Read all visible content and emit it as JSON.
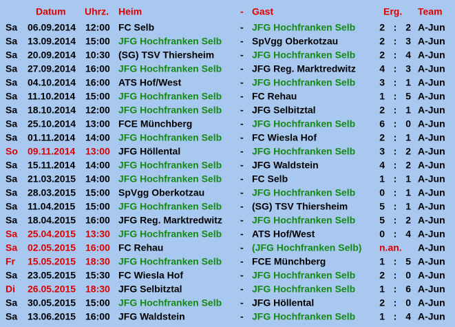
{
  "header": {
    "date": "Datum",
    "time": "Uhrz.",
    "home": "Heim",
    "dash": "-",
    "guest": "Gast",
    "result": "Erg.",
    "team": "Team"
  },
  "score_separator": ":",
  "highlight_club": "JFG Hochfranken Selb",
  "rows": [
    {
      "day": "Sa",
      "date": "06.09.2014",
      "time": "12:00",
      "home": "FC Selb",
      "guest": "JFG Hochfranken Selb",
      "goals_home": 2,
      "goals_guest": 2,
      "team": "A-Jun"
    },
    {
      "day": "Sa",
      "date": "13.09.2014",
      "time": "15:00",
      "home": "JFG Hochfranken Selb",
      "guest": "SpVgg Oberkotzau",
      "goals_home": 2,
      "goals_guest": 3,
      "team": "A-Jun"
    },
    {
      "day": "Sa",
      "date": "20.09.2014",
      "time": "10:30",
      "home": "(SG) TSV Thiersheim",
      "guest": "JFG Hochfranken Selb",
      "goals_home": 2,
      "goals_guest": 4,
      "team": "A-Jun"
    },
    {
      "day": "Sa",
      "date": "27.09.2014",
      "time": "16:00",
      "home": "JFG Hochfranken Selb",
      "guest": "JFG Reg. Marktredwitz",
      "goals_home": 4,
      "goals_guest": 3,
      "team": "A-Jun"
    },
    {
      "day": "Sa",
      "date": "04.10.2014",
      "time": "16:00",
      "home": "ATS Hof/West",
      "guest": "JFG Hochfranken Selb",
      "goals_home": 3,
      "goals_guest": 1,
      "team": "A-Jun"
    },
    {
      "day": "Sa",
      "date": "11.10.2014",
      "time": "15:00",
      "home": "JFG Hochfranken Selb",
      "guest": "FC Rehau",
      "goals_home": 1,
      "goals_guest": 5,
      "team": "A-Jun"
    },
    {
      "day": "Sa",
      "date": "18.10.2014",
      "time": "12:00",
      "home": "JFG Hochfranken Selb",
      "guest": "JFG Selbitztal",
      "goals_home": 2,
      "goals_guest": 1,
      "team": "A-Jun"
    },
    {
      "day": "Sa",
      "date": "25.10.2014",
      "time": "13:00",
      "home": "FCE Münchberg",
      "guest": "JFG Hochfranken Selb",
      "goals_home": 6,
      "goals_guest": 0,
      "team": "A-Jun"
    },
    {
      "day": "Sa",
      "date": "01.11.2014",
      "time": "14:00",
      "home": "JFG Hochfranken Selb",
      "guest": "FC Wiesla Hof",
      "goals_home": 2,
      "goals_guest": 1,
      "team": "A-Jun"
    },
    {
      "day": "So",
      "date": "09.11.2014",
      "time": "13:00",
      "home": "JFG Höllental",
      "guest": "JFG Hochfranken Selb",
      "goals_home": 3,
      "goals_guest": 2,
      "team": "A-Jun",
      "highlight": true
    },
    {
      "day": "Sa",
      "date": "15.11.2014",
      "time": "14:00",
      "home": "JFG Hochfranken Selb",
      "guest": "JFG Waldstein",
      "goals_home": 4,
      "goals_guest": 2,
      "team": "A-Jun"
    },
    {
      "day": "Sa",
      "date": "21.03.2015",
      "time": "14:00",
      "home": "JFG Hochfranken Selb",
      "guest": "FC Selb",
      "goals_home": 1,
      "goals_guest": 1,
      "team": "A-Jun"
    },
    {
      "day": "Sa",
      "date": "28.03.2015",
      "time": "15:00",
      "home": "SpVgg Oberkotzau",
      "guest": "JFG Hochfranken Selb",
      "goals_home": 0,
      "goals_guest": 1,
      "team": "A-Jun"
    },
    {
      "day": "Sa",
      "date": "11.04.2015",
      "time": "15:00",
      "home": "JFG Hochfranken Selb",
      "guest": "(SG) TSV Thiersheim",
      "goals_home": 5,
      "goals_guest": 1,
      "team": "A-Jun"
    },
    {
      "day": "Sa",
      "date": "18.04.2015",
      "time": "16:00",
      "home": "JFG Reg. Marktredwitz",
      "guest": "JFG Hochfranken Selb",
      "goals_home": 5,
      "goals_guest": 2,
      "team": "A-Jun"
    },
    {
      "day": "Sa",
      "date": "25.04.2015",
      "time": "13:30",
      "home": "JFG Hochfranken Selb",
      "guest": "ATS Hof/West",
      "goals_home": 0,
      "goals_guest": 4,
      "team": "A-Jun",
      "highlight": true
    },
    {
      "day": "Sa",
      "date": "02.05.2015",
      "time": "16:00",
      "home": "FC Rehau",
      "guest": "(JFG Hochfranken Selb)",
      "result_text": "n.an.",
      "team": "A-Jun",
      "highlight": true
    },
    {
      "day": "Fr",
      "date": "15.05.2015",
      "time": "18:30",
      "home": "JFG Hochfranken Selb",
      "guest": "FCE Münchberg",
      "goals_home": 1,
      "goals_guest": 5,
      "team": "A-Jun",
      "highlight": true
    },
    {
      "day": "Sa",
      "date": "23.05.2015",
      "time": "15:30",
      "home": "FC Wiesla Hof",
      "guest": "JFG Hochfranken Selb",
      "goals_home": 2,
      "goals_guest": 0,
      "team": "A-Jun"
    },
    {
      "day": "Di",
      "date": "26.05.2015",
      "time": "18:30",
      "home": "JFG Selbitztal",
      "guest": "JFG Hochfranken Selb",
      "goals_home": 1,
      "goals_guest": 6,
      "team": "A-Jun",
      "highlight": true
    },
    {
      "day": "Sa",
      "date": "30.05.2015",
      "time": "15:00",
      "home": "JFG Hochfranken Selb",
      "guest": "JFG Höllental",
      "goals_home": 2,
      "goals_guest": 0,
      "team": "A-Jun"
    },
    {
      "day": "Sa",
      "date": "13.06.2015",
      "time": "16:00",
      "home": "JFG Waldstein",
      "guest": "JFG Hochfranken Selb",
      "goals_home": 1,
      "goals_guest": 4,
      "team": "A-Jun"
    }
  ]
}
